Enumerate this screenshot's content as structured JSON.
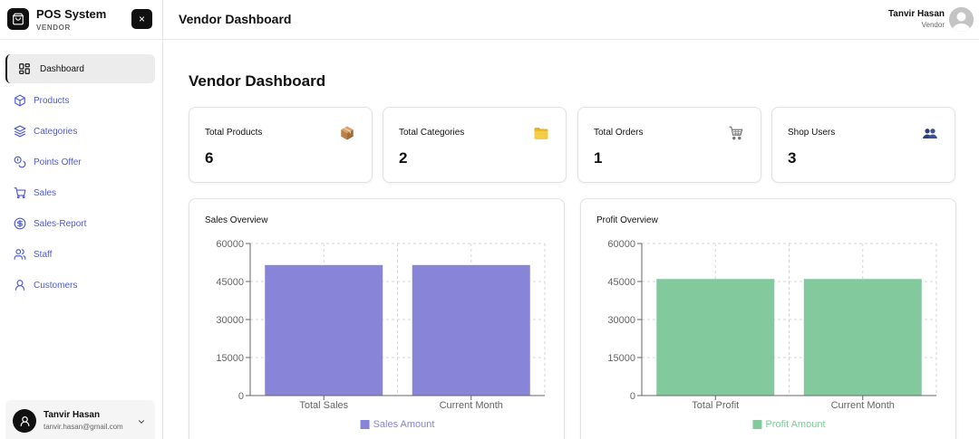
{
  "brand": {
    "title": "POS System",
    "subtitle": "VENDOR",
    "close_label": "×"
  },
  "sidebar": {
    "items": [
      {
        "label": "Dashboard",
        "icon": "grid-icon"
      },
      {
        "label": "Products",
        "icon": "box-icon"
      },
      {
        "label": "Categories",
        "icon": "layers-icon"
      },
      {
        "label": "Points Offer",
        "icon": "coins-icon"
      },
      {
        "label": "Sales",
        "icon": "cart-icon"
      },
      {
        "label": "Sales-Report",
        "icon": "dollar-circle-icon"
      },
      {
        "label": "Staff",
        "icon": "users-icon"
      },
      {
        "label": "Customers",
        "icon": "user-icon"
      }
    ],
    "active_index": 0,
    "user": {
      "name": "Tanvir Hasan",
      "email": "tanvir.hasan@gmail.com"
    }
  },
  "header": {
    "title": "Vendor Dashboard",
    "user_name": "Tanvir Hasan",
    "user_role": "Vendor"
  },
  "main": {
    "title": "Vendor Dashboard",
    "stats": [
      {
        "label": "Total Products",
        "value": "6",
        "icon": "package-icon"
      },
      {
        "label": "Total Categories",
        "value": "2",
        "icon": "folder-icon"
      },
      {
        "label": "Total Orders",
        "value": "1",
        "icon": "shopping-cart-icon"
      },
      {
        "label": "Shop Users",
        "value": "3",
        "icon": "people-icon"
      }
    ]
  },
  "colors": {
    "accent": "#4f5bd5",
    "sales_bar": "#8884d8",
    "profit_bar": "#82ca9d"
  },
  "chart_data": [
    {
      "type": "bar",
      "title": "Sales Overview",
      "categories": [
        "Total Sales",
        "Current Month"
      ],
      "series": [
        {
          "name": "Sales Amount",
          "values": [
            51500,
            51500
          ],
          "color": "#8884d8"
        }
      ],
      "ylim": [
        0,
        60000
      ],
      "yticks": [
        "0",
        "15000",
        "30000",
        "45000",
        "60000"
      ],
      "grid": true,
      "legend": "bottom"
    },
    {
      "type": "bar",
      "title": "Profit Overview",
      "categories": [
        "Total Profit",
        "Current Month"
      ],
      "series": [
        {
          "name": "Profit Amount",
          "values": [
            46000,
            46000
          ],
          "color": "#82ca9d"
        }
      ],
      "ylim": [
        0,
        60000
      ],
      "yticks": [
        "0",
        "15000",
        "30000",
        "45000",
        "60000"
      ],
      "grid": true,
      "legend": "bottom"
    }
  ]
}
